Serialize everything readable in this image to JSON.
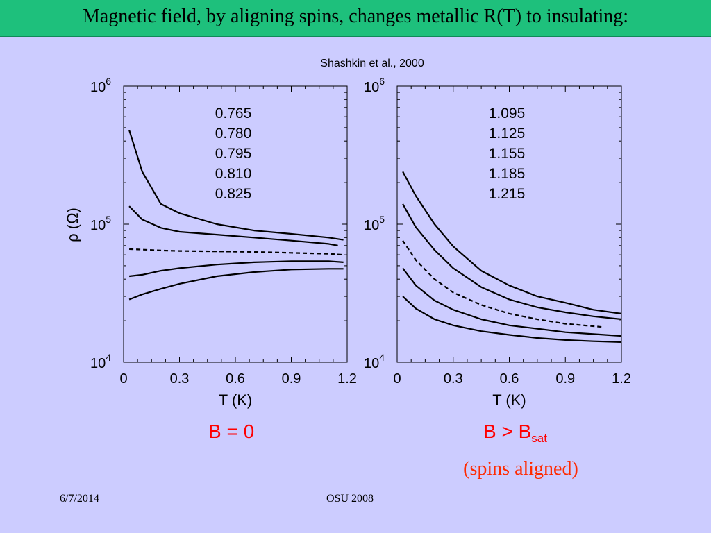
{
  "slide": {
    "title": "Magnetic field, by aligning spins, changes metallic R(T) to insulating:",
    "citation": "Shashkin et al., 2000",
    "panel_left_label": "B = 0",
    "panel_right_label_main": "B > B",
    "panel_right_label_sub": "sat",
    "panel_right_note": "(spins aligned)",
    "footer_date": "6/7/2014",
    "footer_center": "OSU 2008"
  },
  "chart_data": [
    {
      "type": "line",
      "title": "",
      "xlabel": "T (K)",
      "ylabel": "ρ (Ω)",
      "xlim": [
        0,
        1.2
      ],
      "ylim": [
        10000,
        1000000
      ],
      "yscale": "log",
      "x_ticks": [
        "0",
        "0.3",
        "0.6",
        "0.9",
        "1.2"
      ],
      "y_ticks": [
        {
          "base": "10",
          "exp": "4"
        },
        {
          "base": "10",
          "exp": "5"
        },
        {
          "base": "10",
          "exp": "6"
        }
      ],
      "grid": false,
      "legend_entries": [
        "0.765",
        "0.780",
        "0.795",
        "0.810",
        "0.825"
      ],
      "series": [
        {
          "name": "0.765",
          "style": "solid",
          "x": [
            0.03,
            0.1,
            0.2,
            0.3,
            0.5,
            0.7,
            0.9,
            1.1,
            1.18
          ],
          "y": [
            480000,
            240000,
            140000,
            120000,
            100000,
            90000,
            85000,
            80000,
            77000
          ]
        },
        {
          "name": "0.780",
          "style": "solid",
          "x": [
            0.03,
            0.1,
            0.2,
            0.3,
            0.5,
            0.7,
            0.9,
            1.1,
            1.15
          ],
          "y": [
            135000,
            108000,
            94000,
            88000,
            84000,
            80000,
            76000,
            72000,
            70000
          ]
        },
        {
          "name": "0.795",
          "style": "dashed",
          "x": [
            0.03,
            0.1,
            0.2,
            0.3,
            0.5,
            0.7,
            0.9,
            1.1,
            1.18
          ],
          "y": [
            66000,
            65500,
            64500,
            64000,
            63500,
            63000,
            62000,
            61000,
            60000
          ]
        },
        {
          "name": "0.810",
          "style": "solid",
          "x": [
            0.03,
            0.1,
            0.2,
            0.3,
            0.5,
            0.7,
            0.9,
            1.1,
            1.18
          ],
          "y": [
            42000,
            43000,
            46000,
            48000,
            51000,
            53000,
            54000,
            54000,
            53000
          ]
        },
        {
          "name": "0.825",
          "style": "solid",
          "x": [
            0.03,
            0.1,
            0.2,
            0.3,
            0.5,
            0.7,
            0.9,
            1.1,
            1.18
          ],
          "y": [
            28500,
            31000,
            34000,
            37000,
            42000,
            45000,
            47000,
            47500,
            47500
          ]
        }
      ]
    },
    {
      "type": "line",
      "title": "",
      "xlabel": "T (K)",
      "ylabel": "",
      "xlim": [
        0,
        1.2
      ],
      "ylim": [
        10000,
        1000000
      ],
      "yscale": "log",
      "x_ticks": [
        "0",
        "0.3",
        "0.6",
        "0.9",
        "1.2"
      ],
      "y_ticks": [
        {
          "base": "10",
          "exp": "4"
        },
        {
          "base": "10",
          "exp": "5"
        },
        {
          "base": "10",
          "exp": "6"
        }
      ],
      "grid": false,
      "legend_entries": [
        "1.095",
        "1.125",
        "1.155",
        "1.185",
        "1.215"
      ],
      "series": [
        {
          "name": "1.095",
          "style": "solid",
          "x": [
            0.03,
            0.1,
            0.2,
            0.3,
            0.45,
            0.6,
            0.75,
            0.9,
            1.05,
            1.2
          ],
          "y": [
            240000,
            160000,
            100000,
            69000,
            46000,
            36000,
            30000,
            27000,
            24000,
            22500
          ]
        },
        {
          "name": "1.125",
          "style": "solid",
          "x": [
            0.03,
            0.1,
            0.2,
            0.3,
            0.45,
            0.6,
            0.75,
            0.9,
            1.05,
            1.2
          ],
          "y": [
            140000,
            95000,
            65000,
            48000,
            35000,
            28500,
            25000,
            23000,
            21500,
            20500
          ]
        },
        {
          "name": "1.155",
          "style": "dashed",
          "x": [
            0.03,
            0.1,
            0.2,
            0.3,
            0.45,
            0.6,
            0.75,
            0.9,
            1.1
          ],
          "y": [
            76000,
            55000,
            40000,
            32000,
            26000,
            22500,
            20500,
            19000,
            18000
          ]
        },
        {
          "name": "1.185",
          "style": "solid",
          "x": [
            0.03,
            0.1,
            0.2,
            0.3,
            0.45,
            0.6,
            0.75,
            0.9,
            1.05,
            1.2
          ],
          "y": [
            48000,
            36000,
            28000,
            24000,
            20500,
            18500,
            17500,
            16500,
            16000,
            15500
          ]
        },
        {
          "name": "1.215",
          "style": "solid",
          "x": [
            0.03,
            0.1,
            0.2,
            0.3,
            0.45,
            0.6,
            0.75,
            0.9,
            1.05,
            1.2
          ],
          "y": [
            30000,
            24500,
            20500,
            18500,
            16800,
            15800,
            15000,
            14500,
            14200,
            14000
          ]
        }
      ]
    }
  ]
}
